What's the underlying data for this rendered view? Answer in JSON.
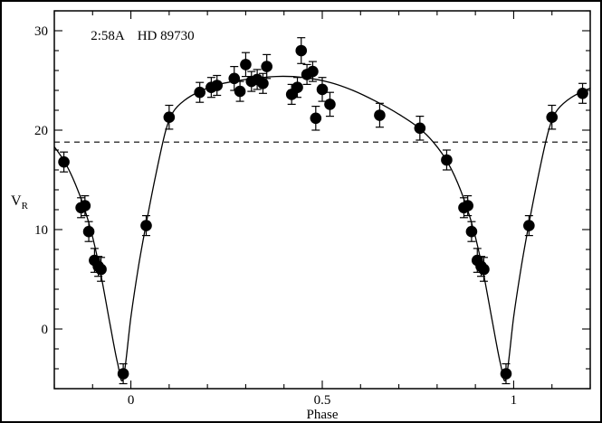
{
  "figure": {
    "background": "#ffffff",
    "border_color": "#000000",
    "ink_color": "#000000"
  },
  "chart_data": {
    "type": "scatter",
    "title": {
      "label": "2:58A",
      "star": "HD 89730"
    },
    "xlabel": "Phase",
    "ylabel_main": "V",
    "ylabel_sub": "R",
    "xlim": [
      -0.2,
      1.2
    ],
    "ylim": [
      -6,
      32
    ],
    "x_major_ticks": [
      0,
      0.5,
      1
    ],
    "x_major_labels": [
      "0",
      "0.5",
      "1"
    ],
    "x_minor_step": 0.1,
    "y_major_ticks": [
      0,
      10,
      20,
      30
    ],
    "y_major_labels": [
      "0",
      "10",
      "20",
      "30"
    ],
    "y_minor_step": 2,
    "grid": false,
    "legend": "none",
    "dashed_line_y": 18.8,
    "marker": {
      "shape": "filled-circle",
      "color": "#000000"
    },
    "points": [
      [
        -0.175,
        16.8,
        1.0
      ],
      [
        -0.13,
        12.2,
        1.0
      ],
      [
        -0.12,
        12.4,
        1.0
      ],
      [
        -0.11,
        9.8,
        1.0
      ],
      [
        -0.095,
        6.9,
        1.2
      ],
      [
        -0.085,
        6.3,
        1.0
      ],
      [
        -0.078,
        6.0,
        1.2
      ],
      [
        -0.02,
        -4.5,
        1.0
      ],
      [
        0.04,
        10.4,
        1.0
      ],
      [
        0.1,
        21.3,
        1.2
      ],
      [
        0.18,
        23.8,
        1.0
      ],
      [
        0.21,
        24.3,
        1.0
      ],
      [
        0.225,
        24.5,
        1.0
      ],
      [
        0.27,
        25.2,
        1.2
      ],
      [
        0.285,
        23.9,
        1.0
      ],
      [
        0.3,
        26.6,
        1.2
      ],
      [
        0.315,
        24.9,
        1.0
      ],
      [
        0.33,
        25.1,
        1.0
      ],
      [
        0.345,
        24.7,
        1.0
      ],
      [
        0.355,
        26.4,
        1.2
      ],
      [
        0.42,
        23.6,
        1.0
      ],
      [
        0.435,
        24.3,
        1.0
      ],
      [
        0.445,
        28.0,
        1.3
      ],
      [
        0.46,
        25.6,
        1.0
      ],
      [
        0.475,
        25.9,
        1.0
      ],
      [
        0.483,
        21.2,
        1.2
      ],
      [
        0.5,
        24.1,
        1.2
      ],
      [
        0.52,
        22.6,
        1.2
      ],
      [
        0.65,
        21.5,
        1.2
      ],
      [
        0.755,
        20.2,
        1.2
      ],
      [
        0.825,
        17.0,
        1.0
      ],
      [
        0.87,
        12.2,
        1.0
      ],
      [
        0.88,
        12.4,
        1.0
      ],
      [
        0.89,
        9.8,
        1.0
      ],
      [
        0.905,
        6.9,
        1.2
      ],
      [
        0.915,
        6.3,
        1.0
      ],
      [
        0.922,
        6.0,
        1.2
      ],
      [
        0.98,
        -4.5,
        1.0
      ],
      [
        1.04,
        10.4,
        1.0
      ],
      [
        1.1,
        21.3,
        1.2
      ],
      [
        1.18,
        23.7,
        1.0
      ]
    ],
    "curve_period": 1,
    "curve": [
      [
        0.0,
        1.2
      ],
      [
        0.02,
        6.3
      ],
      [
        0.04,
        10.6
      ],
      [
        0.065,
        15.5
      ],
      [
        0.09,
        19.8
      ],
      [
        0.11,
        21.8
      ],
      [
        0.14,
        23.0
      ],
      [
        0.18,
        23.9
      ],
      [
        0.23,
        24.6
      ],
      [
        0.3,
        25.1
      ],
      [
        0.38,
        25.4
      ],
      [
        0.45,
        25.3
      ],
      [
        0.52,
        24.8
      ],
      [
        0.58,
        24.0
      ],
      [
        0.64,
        22.9
      ],
      [
        0.7,
        21.6
      ],
      [
        0.75,
        20.3
      ],
      [
        0.79,
        18.8
      ],
      [
        0.83,
        16.6
      ],
      [
        0.865,
        13.6
      ],
      [
        0.895,
        10.0
      ],
      [
        0.92,
        5.8
      ],
      [
        0.945,
        0.6
      ],
      [
        0.965,
        -3.4
      ],
      [
        0.98,
        -5.0
      ]
    ]
  }
}
